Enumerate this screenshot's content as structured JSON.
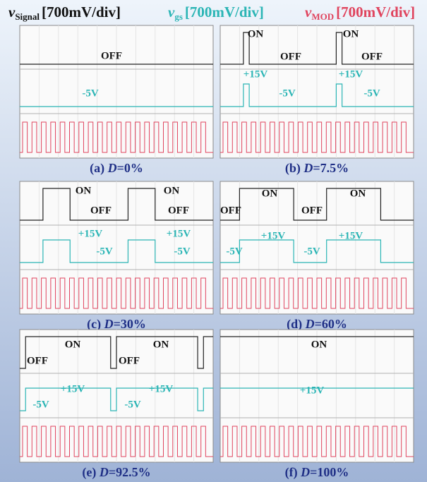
{
  "header": {
    "signal": {
      "symbol": "v",
      "subscript": "Signal",
      "scale": "[700mV/div]"
    },
    "gs": {
      "symbol": "v",
      "subscript": "gs",
      "scale": "[700mV/div]"
    },
    "mod": {
      "symbol": "v",
      "subscript": "MOD",
      "scale": "[700mV/div]"
    }
  },
  "panels": [
    {
      "caption": {
        "letter": "(a) ",
        "symbol": "D",
        "value": "=0%"
      },
      "signal_labels": [
        "OFF"
      ],
      "gs_labels": [
        "-5V"
      ]
    },
    {
      "caption": {
        "letter": "(b) ",
        "symbol": "D",
        "value": "=7.5%"
      },
      "signal_labels": [
        "ON",
        "ON",
        "OFF",
        "OFF"
      ],
      "gs_labels": [
        "+15V",
        "+15V",
        "-5V",
        "-5V"
      ]
    },
    {
      "caption": {
        "letter": "(c) ",
        "symbol": "D",
        "value": "=30%"
      },
      "signal_labels": [
        "ON",
        "ON",
        "OFF",
        "OFF"
      ],
      "gs_labels": [
        "+15V",
        "+15V",
        "-5V",
        "-5V"
      ]
    },
    {
      "caption": {
        "letter": "(d) ",
        "symbol": "D",
        "value": "=60%"
      },
      "signal_labels": [
        "ON",
        "ON",
        "OFF",
        "OFF"
      ],
      "gs_labels": [
        "-5V",
        "+15V",
        "-5V",
        "+15V"
      ]
    },
    {
      "caption": {
        "letter": "(e) ",
        "symbol": "D",
        "value": "=92.5%"
      },
      "signal_labels": [
        "ON",
        "ON",
        "OFF",
        "OFF"
      ],
      "gs_labels": [
        "+15V",
        "+15V",
        "-5V",
        "-5V"
      ]
    },
    {
      "caption": {
        "letter": "(f) ",
        "symbol": "D",
        "value": "=100%"
      },
      "signal_labels": [
        "ON"
      ],
      "gs_labels": [
        "+15V"
      ]
    }
  ]
}
